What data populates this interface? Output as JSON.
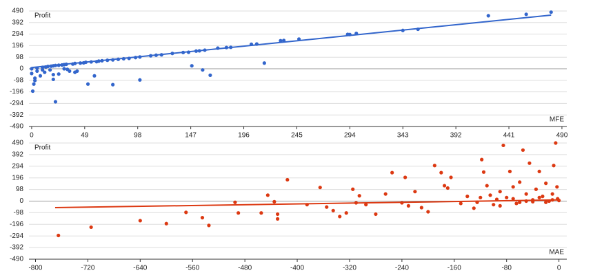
{
  "chart_data": [
    {
      "type": "scatter",
      "ylabel": "Profit",
      "xlabel": "MFE",
      "color": "#3366cc",
      "xlim": [
        -2.5,
        494.5
      ],
      "ylim": [
        -490,
        490
      ],
      "xticks": [
        0,
        49,
        98,
        147,
        196,
        245,
        294,
        343,
        392,
        441,
        490
      ],
      "yticks": [
        490,
        392,
        294,
        196,
        98,
        0,
        -98,
        -196,
        -294,
        -392,
        -490
      ],
      "grid": true,
      "x": [
        480,
        457,
        422,
        357,
        343,
        300,
        294,
        292,
        247,
        233,
        230,
        208,
        203,
        215,
        184,
        180,
        172,
        160,
        155,
        152,
        145,
        140,
        148,
        158,
        165,
        130,
        120,
        115,
        110,
        100,
        100,
        96,
        90,
        85,
        80,
        75,
        75,
        70,
        65,
        62,
        58,
        60,
        55,
        52,
        50,
        48,
        45,
        42,
        40,
        38,
        35,
        33,
        32,
        30,
        28,
        25,
        25,
        22,
        20,
        20,
        20,
        18,
        15,
        13,
        10,
        10,
        8,
        5,
        5,
        3,
        2,
        1,
        0,
        0,
        3,
        22,
        12,
        30,
        17,
        40
      ],
      "y": [
        480,
        462,
        450,
        335,
        325,
        300,
        290,
        292,
        252,
        240,
        238,
        210,
        208,
        48,
        182,
        180,
        175,
        158,
        152,
        150,
        140,
        138,
        25,
        -10,
        -55,
        130,
        118,
        115,
        110,
        -95,
        100,
        95,
        88,
        85,
        80,
        -135,
        75,
        72,
        68,
        65,
        -60,
        60,
        58,
        -130,
        55,
        50,
        48,
        -20,
        45,
        40,
        -20,
        -5,
        38,
        35,
        32,
        -45,
        30,
        28,
        25,
        -90,
        -50,
        22,
        20,
        15,
        12,
        -10,
        -60,
        5,
        -20,
        -80,
        -130,
        -190,
        0,
        -40,
        -100,
        -280,
        -30,
        0,
        -10,
        -30
      ],
      "trend": {
        "x": [
          0,
          480
        ],
        "y": [
          10,
          455
        ]
      }
    },
    {
      "type": "scatter",
      "ylabel": "Profit",
      "xlabel": "MAE",
      "color": "#dc3912",
      "xlim": [
        -810,
        12
      ],
      "ylim": [
        -490,
        490
      ],
      "xticks": [
        -800,
        -720,
        -640,
        -560,
        -480,
        -400,
        -320,
        -240,
        -160,
        -80,
        0
      ],
      "yticks": [
        490,
        392,
        294,
        196,
        98,
        0,
        -98,
        -196,
        -294,
        -392,
        -490
      ],
      "grid": true,
      "x": [
        -765,
        -715,
        -640,
        -600,
        -570,
        -545,
        -535,
        -495,
        -490,
        -455,
        -445,
        -435,
        -430,
        -430,
        -415,
        -385,
        -365,
        -355,
        -345,
        -335,
        -325,
        -315,
        -310,
        -305,
        -295,
        -280,
        -265,
        -255,
        -240,
        -235,
        -230,
        -220,
        -210,
        -200,
        -190,
        -180,
        -175,
        -170,
        -165,
        -150,
        -140,
        -130,
        -125,
        -120,
        -118,
        -115,
        -110,
        -105,
        -100,
        -95,
        -90,
        -85,
        -80,
        -75,
        -70,
        -65,
        -60,
        -55,
        -50,
        -45,
        -40,
        -35,
        -30,
        -25,
        -20,
        -15,
        -10,
        -8,
        -5,
        -3,
        -2,
        0,
        -60,
        -40,
        -20,
        -90,
        -70,
        -30,
        -10,
        -50
      ],
      "y": [
        -290,
        -220,
        -165,
        -190,
        -95,
        -140,
        -205,
        -10,
        -100,
        -100,
        50,
        -5,
        -150,
        -110,
        180,
        -30,
        115,
        -50,
        -80,
        -130,
        -100,
        100,
        -15,
        45,
        -30,
        -110,
        60,
        240,
        -15,
        200,
        -40,
        80,
        -55,
        -90,
        300,
        240,
        130,
        110,
        200,
        -20,
        40,
        -60,
        -10,
        30,
        350,
        245,
        130,
        50,
        -30,
        15,
        80,
        470,
        30,
        250,
        120,
        -20,
        160,
        430,
        60,
        320,
        10,
        100,
        250,
        40,
        150,
        0,
        60,
        300,
        490,
        120,
        20,
        5,
        -10,
        -5,
        -10,
        -40,
        20,
        30,
        10,
        0
      ],
      "trend": {
        "x": [
          -770,
          0
        ],
        "y": [
          -55,
          10
        ]
      }
    }
  ]
}
